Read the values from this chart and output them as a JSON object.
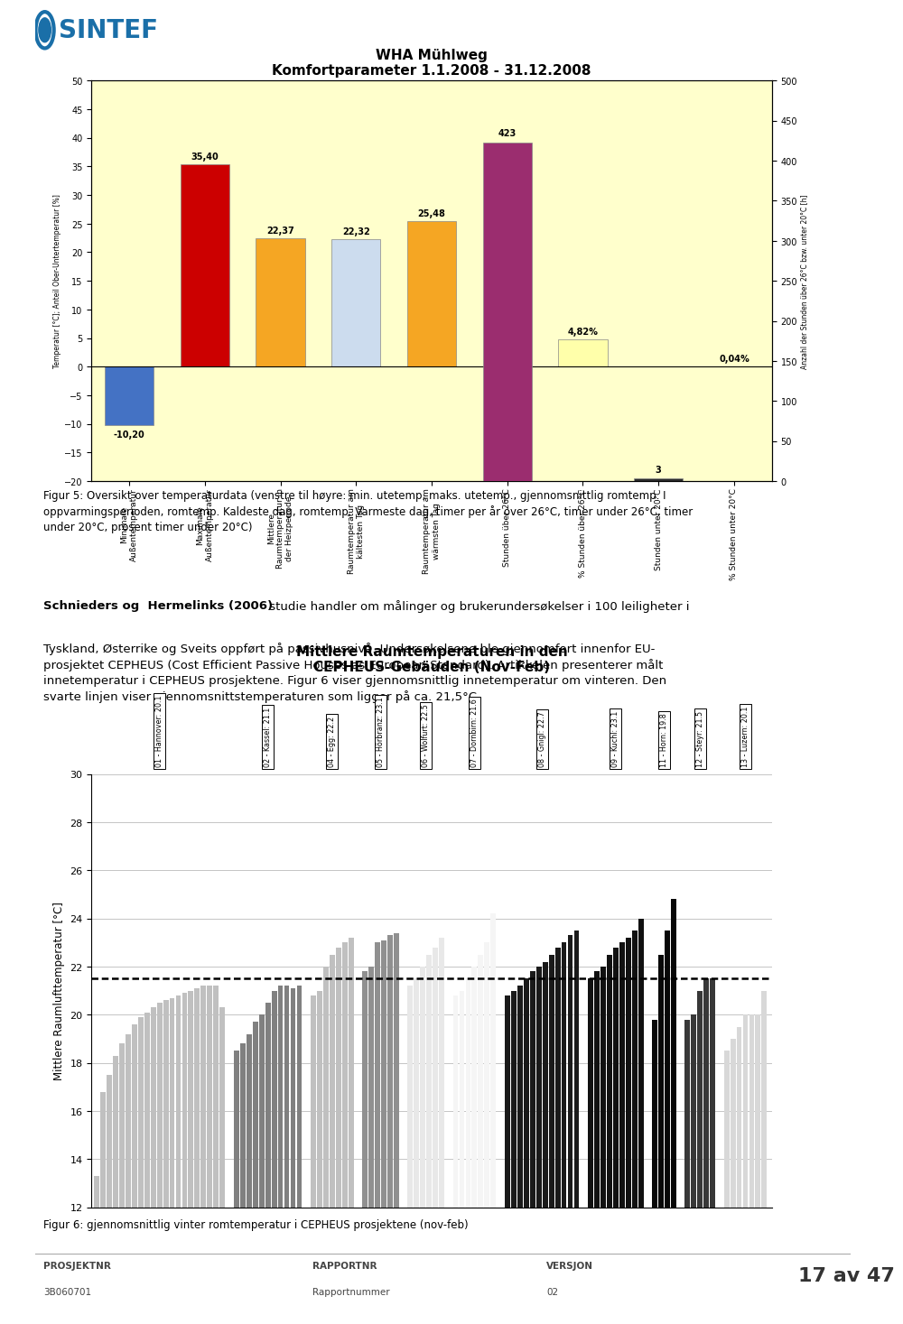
{
  "page_bg": "#ffffff",
  "sintef_blue": "#1a6fa8",
  "chart1": {
    "title": "WHA Mühlweg",
    "subtitle": "Komfortparameter 1.1.2008 - 31.12.2008",
    "bg_color": "#ffffcc",
    "bar_labels": [
      "Minimale\nAußentemperatur",
      "Maximale\nAußentemperatur",
      "Mittlere\nRaumtemperatur in\nder Heizperiode",
      "Raumtemperatur am\nkältesten Tag",
      "Raumtemperatur am\nwärmsten Tag",
      "Stunden über 26°C",
      "% Stunden über 26°C",
      "Stunden unter 20°C",
      "% Stunden unter 20°C"
    ],
    "values_left": [
      -10.2,
      35.4,
      22.37,
      22.32,
      25.48,
      null,
      4.82,
      null,
      0.04
    ],
    "values_right": [
      null,
      null,
      null,
      null,
      null,
      423,
      null,
      3,
      null
    ],
    "bar_colors": [
      "#4472c4",
      "#cc0000",
      "#f5a623",
      "#ccdcee",
      "#f5a623",
      "#9b2d6f",
      "#ffffaa",
      "#2a2a2a",
      "#ffffaa"
    ],
    "ylim_left": [
      -20,
      50
    ],
    "ylim_right": [
      0,
      500
    ],
    "yticks_left": [
      -20,
      -15,
      -10,
      -5,
      0,
      5,
      10,
      15,
      20,
      25,
      30,
      35,
      40,
      45,
      50
    ],
    "yticks_right": [
      0,
      50,
      100,
      150,
      200,
      250,
      300,
      350,
      400,
      450,
      500
    ],
    "ylabel_left": "Temperatur [°C]; Anteil Ober-Untertemperatur [%]",
    "ylabel_right": "Anzahl der Stunden über 26°C bzw. unter 20°C [h]",
    "value_labels": [
      "-10,20",
      "35,40",
      "22,37",
      "22,32",
      "25,48",
      "423",
      "4,82%",
      "3",
      "0,04%"
    ]
  },
  "text_block": {
    "fig_caption_bold": "Figur 5:",
    "fig_caption": " Oversikt over temperaturdata (venstre til høyre: min. utetemp, maks. utetemp., gjennomsnittlig romtemp. I oppvarmingsperioden, romtemp. Kaldeste dag, romtemp. Varmeste dag, timer per år over 26°C, timer under 26°C, timer under 20°C, prosent timer under 20°C)",
    "body_bold": "Schnieders og  Hermelinks (2006)",
    "body_rest": " studie handler om målinger og brukerundersøkelser i 100 leiligheter i Tyskland, Østerrike og Sveits oppført på passivhusnivå. Undersøkelsene ble gjennomfort innenfor EU-prosjektet CEPHEUS (Cost Efficient Passive Houses as European Standard). Artikkelen presenterer målt innetemperatur i CEPHEUS prosjektene. Figur 6 viser gjennomsnittlig innetemperatur om vinteren. Den svarte linjen viser gjennomsnittstemperaturen som ligger på ca. 21,5°C."
  },
  "chart2": {
    "title": "Mittlere Raumtemperaturen in den\nCEPHEUS-Gebäuden (Nov-Feb)",
    "ylabel": "Mittlere Raumlufttemperatur [°C]",
    "ylim": [
      12,
      30
    ],
    "yticks": [
      12,
      14,
      16,
      18,
      20,
      22,
      24,
      26,
      28,
      30
    ],
    "mean_line": 21.5,
    "fig_caption": "Figur 6: gjennomsnittlig vinter romtemperatur i CEPHEUS prosjektene (nov-feb)",
    "groups": [
      {
        "label": "01 - Hannover: 20.1",
        "color": "#c0c0c0",
        "hatch": "|||",
        "n_bars": 21,
        "vals": [
          13.3,
          16.8,
          17.5,
          18.3,
          18.8,
          19.2,
          19.6,
          19.9,
          20.1,
          20.3,
          20.5,
          20.6,
          20.7,
          20.8,
          20.9,
          21.0,
          21.1,
          21.2,
          21.2,
          21.2,
          20.3
        ]
      },
      {
        "label": "02 - Kassel: 21.1",
        "color": "#808080",
        "hatch": "|||",
        "n_bars": 11,
        "vals": [
          18.5,
          18.8,
          19.2,
          19.7,
          20.0,
          20.5,
          21.0,
          21.2,
          21.2,
          21.1,
          21.2
        ]
      },
      {
        "label": "04 - Egg: 22.2",
        "color": "#c0c0c0",
        "hatch": "|||",
        "n_bars": 7,
        "vals": [
          20.8,
          21.0,
          22.0,
          22.5,
          22.8,
          23.0,
          23.2
        ]
      },
      {
        "label": "05 - Hörbranz: 23.1",
        "color": "#909090",
        "hatch": "|||",
        "n_bars": 6,
        "vals": [
          21.8,
          22.0,
          23.0,
          23.1,
          23.3,
          23.4
        ]
      },
      {
        "label": "06 - Wolfurt: 22.5",
        "color": "#e8e8e8",
        "hatch": "|||",
        "n_bars": 6,
        "vals": [
          21.2,
          21.5,
          22.0,
          22.5,
          22.8,
          23.2
        ]
      },
      {
        "label": "07 - Dornbirn: 21.6",
        "color": "#f5f5f5",
        "hatch": "|||",
        "n_bars": 7,
        "vals": [
          20.8,
          21.0,
          21.5,
          22.0,
          22.5,
          23.0,
          24.2
        ]
      },
      {
        "label": "08 - Gnigl: 22.7",
        "color": "#1a1a1a",
        "hatch": "",
        "n_bars": 12,
        "vals": [
          20.8,
          21.0,
          21.2,
          21.5,
          21.8,
          22.0,
          22.2,
          22.5,
          22.8,
          23.0,
          23.3,
          23.5
        ]
      },
      {
        "label": "09 - Kuchl: 23.1",
        "color": "#111111",
        "hatch": "",
        "n_bars": 9,
        "vals": [
          21.5,
          21.8,
          22.0,
          22.5,
          22.8,
          23.0,
          23.2,
          23.5,
          24.0
        ]
      },
      {
        "label": "11 - Horn: 19.8",
        "color": "#080808",
        "hatch": "",
        "n_bars": 4,
        "vals": [
          19.8,
          22.5,
          23.5,
          24.8
        ]
      },
      {
        "label": "12 - Steyr: 21.5",
        "color": "#383838",
        "hatch": "",
        "n_bars": 5,
        "vals": [
          19.8,
          20.0,
          21.0,
          21.5,
          21.5
        ]
      },
      {
        "label": "13 - Luzern: 20.1",
        "color": "#d8d8d8",
        "hatch": "|||",
        "n_bars": 7,
        "vals": [
          18.5,
          19.0,
          19.5,
          20.0,
          20.0,
          20.0,
          21.0
        ]
      }
    ]
  },
  "footer": {
    "left1": "PROSJEKTNR",
    "left2": "3B060701",
    "center1": "RAPPORTNR",
    "center2": "Rapportnummer",
    "right1": "VERSJON",
    "right2": "02",
    "page": "17 av 47"
  }
}
